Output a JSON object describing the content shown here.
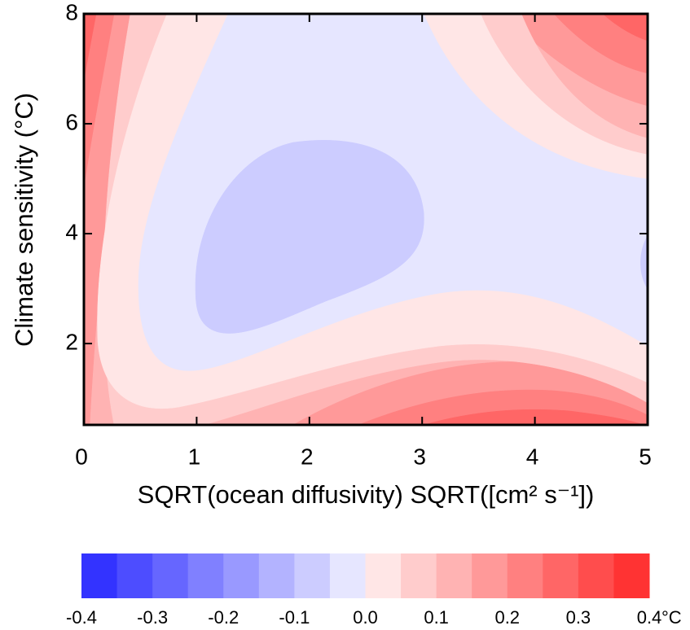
{
  "chart_data": {
    "type": "contour",
    "xlabel": "SQRT(ocean diffusivity) SQRT([cm² s⁻¹])",
    "ylabel": "Climate sensitivity (°C)",
    "xlim": [
      0,
      5
    ],
    "ylim": [
      0.52,
      8
    ],
    "xticks": [
      0,
      1,
      2,
      3,
      4,
      5
    ],
    "yticks": [
      2,
      4,
      6,
      8
    ],
    "colorbar": {
      "levels": [
        -0.4,
        -0.35,
        -0.3,
        -0.25,
        -0.2,
        -0.15,
        -0.1,
        -0.05,
        0,
        0.05,
        0.1,
        0.15,
        0.2,
        0.25,
        0.3,
        0.35,
        0.4
      ],
      "colors": [
        "#3333ff",
        "#4d4dff",
        "#6666ff",
        "#8080ff",
        "#9999ff",
        "#b3b3ff",
        "#ccccff",
        "#e6e6ff",
        "#ffe6e6",
        "#ffcccc",
        "#ffb3b3",
        "#ff9999",
        "#ff8080",
        "#ff6666",
        "#ff4d4d",
        "#ff3333"
      ],
      "ticks": [
        -0.4,
        -0.3,
        -0.2,
        -0.1,
        {
          "value": 0,
          "label": "0.0"
        },
        0.1,
        0.2,
        0.3,
        0.4
      ],
      "unit": "°C"
    }
  }
}
